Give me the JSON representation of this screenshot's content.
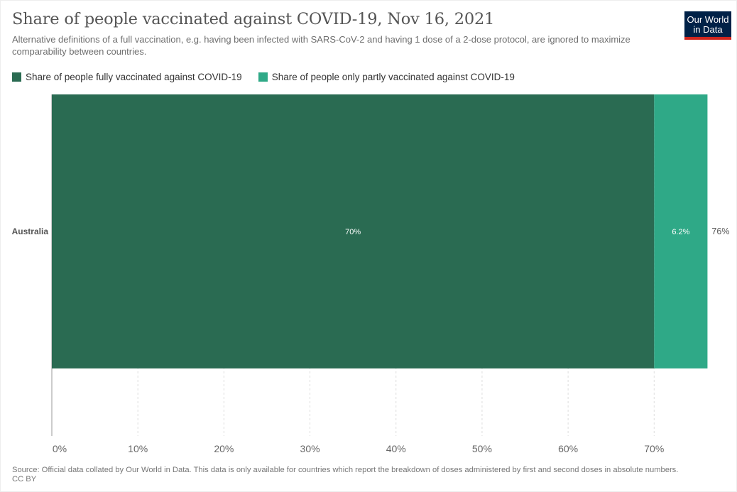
{
  "header": {
    "title": "Share of people vaccinated against COVID-19, Nov 16, 2021",
    "subtitle": "Alternative definitions of a full vaccination, e.g. having been infected with SARS-CoV-2 and having 1 dose of a 2-dose protocol, are ignored to maximize comparability between countries.",
    "logo_line1": "Our World",
    "logo_line2": "in Data"
  },
  "legend": [
    {
      "label": "Share of people fully vaccinated against COVID-19",
      "color": "#2a6b52"
    },
    {
      "label": "Share of people only partly vaccinated against COVID-19",
      "color": "#2fa987"
    }
  ],
  "footer": {
    "source": "Source: Official data collated by Our World in Data. This data is only available for countries which report the breakdown of doses administered by first and second doses in absolute numbers.",
    "license": "CC BY"
  },
  "chart_data": {
    "type": "bar",
    "orientation": "horizontal",
    "stacked": true,
    "categories": [
      "Australia"
    ],
    "series": [
      {
        "name": "Share of people fully vaccinated against COVID-19",
        "values": [
          70
        ],
        "labels": [
          "70%"
        ],
        "color": "#2a6b52"
      },
      {
        "name": "Share of people only partly vaccinated against COVID-19",
        "values": [
          6.2
        ],
        "labels": [
          "6.2%"
        ],
        "color": "#2fa987"
      }
    ],
    "totals": [
      {
        "value": 76,
        "label": "76%"
      }
    ],
    "xlim": [
      0,
      76
    ],
    "xticks": [
      0,
      10,
      20,
      30,
      40,
      50,
      60,
      70
    ],
    "xtick_labels": [
      "0%",
      "10%",
      "20%",
      "30%",
      "40%",
      "50%",
      "60%",
      "70%"
    ],
    "grid": true
  }
}
